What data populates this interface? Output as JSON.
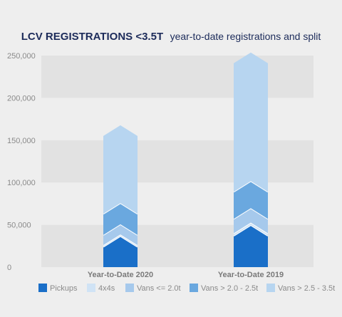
{
  "chart_data": {
    "type": "bar",
    "stacked": true,
    "title": "LCV REGISTRATIONS <3.5T",
    "subtitle": "year-to-date registrations and split",
    "categories": [
      "Year-to-Date 2020",
      "Year-to-Date 2019"
    ],
    "series": [
      {
        "name": "Pickups",
        "color": "#1a6fc8",
        "values": [
          24000,
          37000
        ]
      },
      {
        "name": "4x4s",
        "color": "#d0e3f5",
        "values": [
          2000,
          3000
        ]
      },
      {
        "name": "Vans <= 2.0t",
        "color": "#a6c9ec",
        "values": [
          12000,
          17000
        ]
      },
      {
        "name": "Vans > 2.0 - 2.5t",
        "color": "#6aa8df",
        "values": [
          25000,
          32000
        ]
      },
      {
        "name": "Vans > 2.5 - 3.5t",
        "color": "#b7d5f0",
        "values": [
          92000,
          152000
        ]
      }
    ],
    "ylim": [
      0,
      250000
    ],
    "yticks": [
      0,
      50000,
      100000,
      150000,
      200000,
      250000
    ],
    "ytick_labels": [
      "0",
      "50,000",
      "100,000",
      "150,000",
      "200,000",
      "250,000"
    ],
    "grid": "alternating horizontal bands",
    "legend_position": "bottom"
  }
}
